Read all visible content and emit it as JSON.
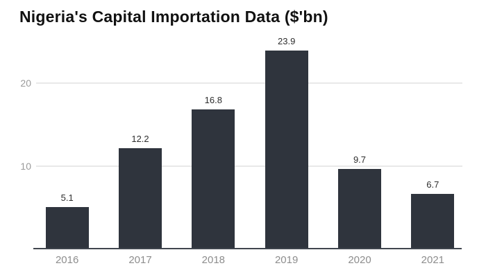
{
  "chart_data": {
    "type": "bar",
    "title": "Nigeria's Capital Importation Data ($'bn)",
    "categories": [
      "2016",
      "2017",
      "2018",
      "2019",
      "2020",
      "2021"
    ],
    "values": [
      5.1,
      12.2,
      16.8,
      23.9,
      9.7,
      6.7
    ],
    "value_labels": [
      "5.1",
      "12.2",
      "16.8",
      "23.9",
      "9.7",
      "6.7"
    ],
    "xlabel": "",
    "ylabel": "",
    "ylim": [
      0,
      30
    ],
    "yticks": [
      10,
      20
    ],
    "grid": "horizontal",
    "legend": "none",
    "bar_color": "#2f343d",
    "axis_line_color": "#40454e",
    "gridline_color": "#e8e8e8",
    "tick_label_color": "#9a9a9a",
    "value_label_color": "#2d2d2d",
    "title_color": "#111111"
  }
}
